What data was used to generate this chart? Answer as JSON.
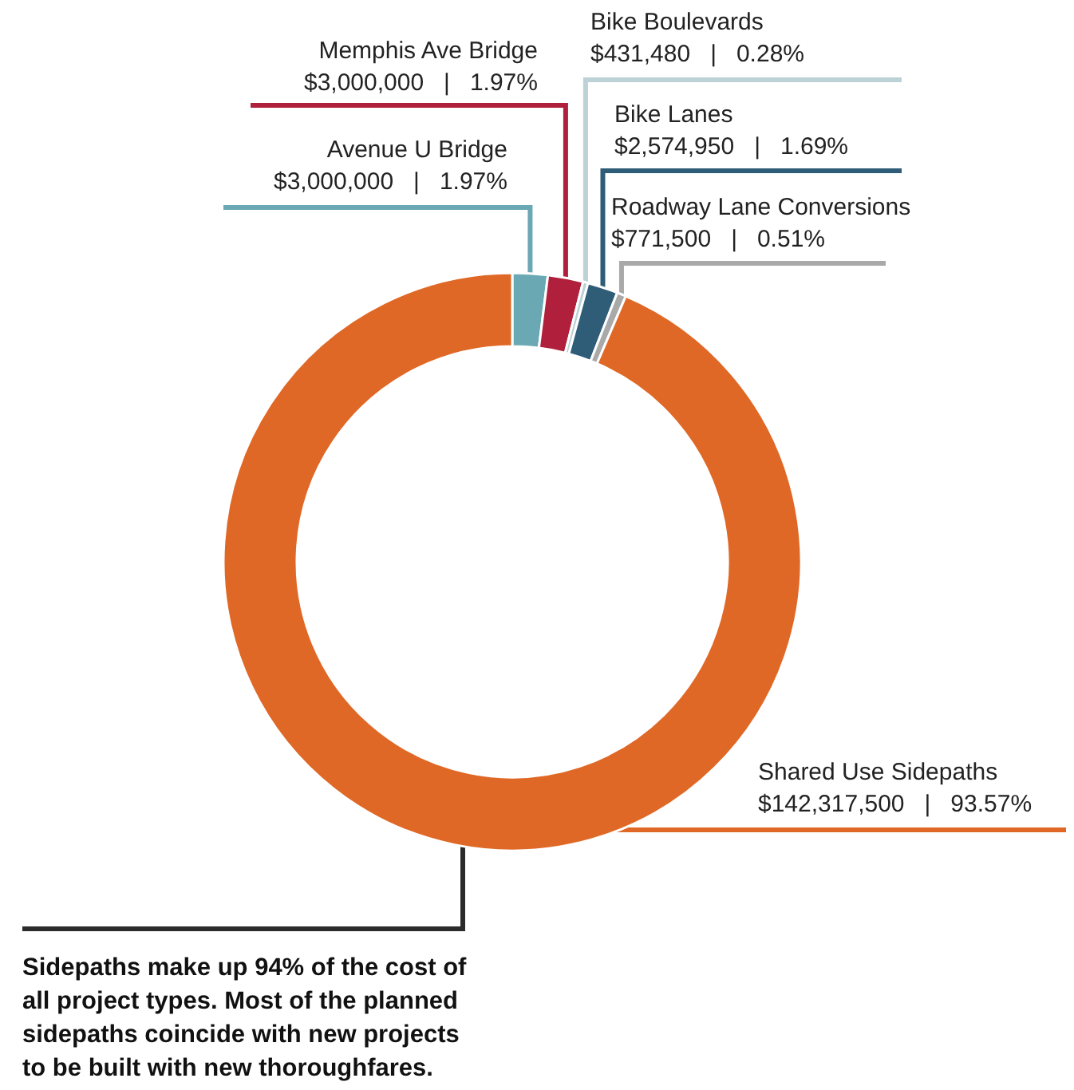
{
  "chart_data": {
    "type": "donut",
    "categories": [
      "Avenue U Bridge",
      "Memphis Ave Bridge",
      "Bike Boulevards",
      "Bike Lanes",
      "Roadway Lane Conversions",
      "Shared Use Sidepaths"
    ],
    "values": [
      3000000,
      3000000,
      431480,
      2574950,
      771500,
      142317500
    ],
    "value_labels": [
      "$3,000,000   |   1.97%",
      "$3,000,000   |   1.97%",
      "$431,480   |   0.28%",
      "$2,574,950   |   1.69%",
      "$771,500   |   0.51%",
      "$142,317,500   |   93.57%"
    ],
    "colors": [
      "#6aa9b3",
      "#b01f3b",
      "#bcd2d6",
      "#2f5d78",
      "#a9a9a9",
      "#e06826"
    ],
    "annotations": [
      "Sidepaths make up 94% of the cost of all project types. Most of the planned sidepaths coincide with new projects to be built with new thoroughfares."
    ],
    "legend": false
  }
}
